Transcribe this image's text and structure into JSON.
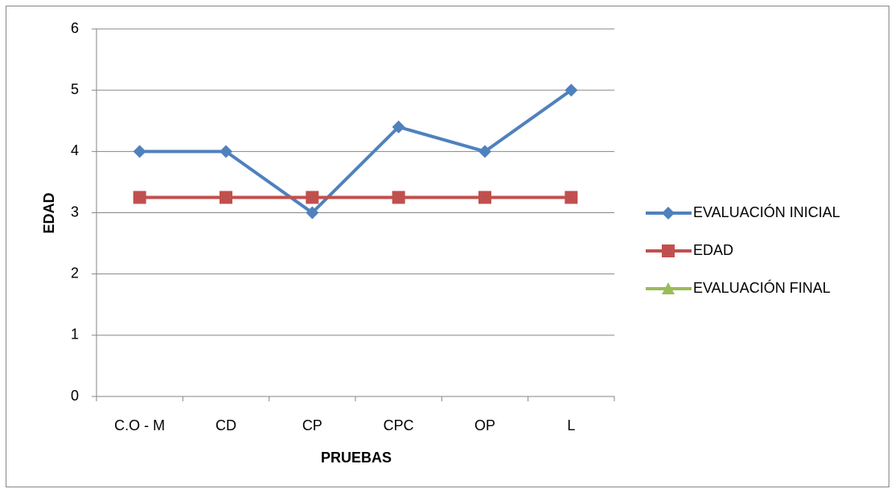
{
  "chart_data": {
    "type": "line",
    "x_label": "PRUEBAS",
    "y_label": "EDAD",
    "categories": [
      "C.O - M",
      "CD",
      "CP",
      "CPC",
      "OP",
      "L"
    ],
    "series": [
      {
        "name": "EVALUACIÓN INICIAL",
        "color": "#4f81bd",
        "marker": "diamond",
        "values": [
          4,
          4,
          3,
          4.4,
          4,
          5
        ]
      },
      {
        "name": "EDAD",
        "color": "#c0504d",
        "marker": "square",
        "values": [
          3.25,
          3.25,
          3.25,
          3.25,
          3.25,
          3.25
        ]
      },
      {
        "name": "EVALUACIÓN FINAL",
        "color": "#9bbb59",
        "marker": "triangle",
        "values": [
          null,
          null,
          null,
          null,
          null,
          null
        ]
      }
    ],
    "ylim": [
      0,
      6
    ],
    "yticks": [
      0,
      1,
      2,
      3,
      4,
      5,
      6
    ],
    "grid": true,
    "legend": "right"
  }
}
